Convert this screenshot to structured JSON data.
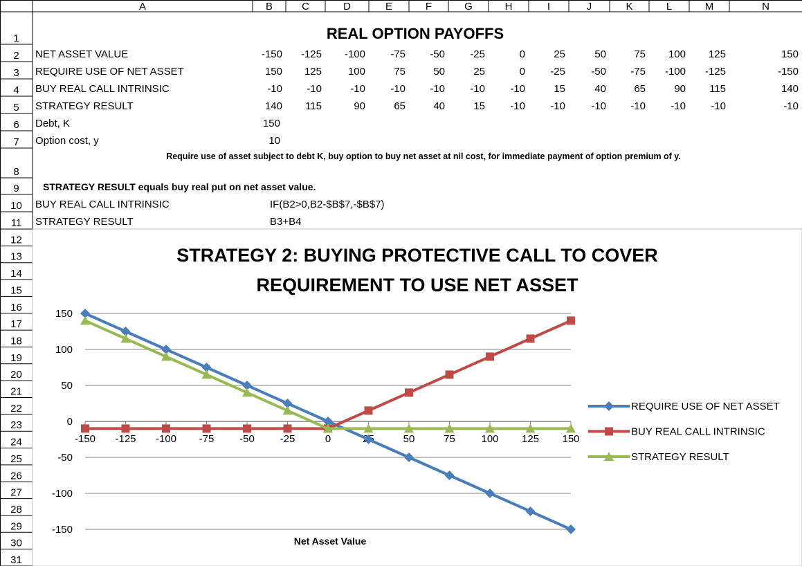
{
  "sheet": {
    "columns": [
      "A",
      "B",
      "C",
      "D",
      "E",
      "F",
      "G",
      "H",
      "I",
      "J",
      "K",
      "L",
      "M",
      "N"
    ],
    "rows": [
      1,
      2,
      3,
      4,
      5,
      6,
      7,
      8,
      9,
      10,
      11,
      12,
      13,
      14,
      15,
      16,
      17,
      18,
      19,
      20,
      21,
      22,
      23,
      24,
      25,
      26,
      27,
      28,
      29,
      30,
      31
    ],
    "title": "REAL OPTION PAYOFFS",
    "table": [
      {
        "label": "NET ASSET VALUE",
        "values": [
          -150,
          -125,
          -100,
          -75,
          -50,
          -25,
          0,
          25,
          50,
          75,
          100,
          125,
          150
        ]
      },
      {
        "label": "REQUIRE USE OF NET ASSET",
        "values": [
          150,
          125,
          100,
          75,
          50,
          25,
          0,
          -25,
          -50,
          -75,
          -100,
          -125,
          -150
        ]
      },
      {
        "label": "BUY REAL CALL INTRINSIC",
        "values": [
          -10,
          -10,
          -10,
          -10,
          -10,
          -10,
          -10,
          15,
          40,
          65,
          90,
          115,
          140
        ]
      },
      {
        "label": "STRATEGY RESULT",
        "values": [
          140,
          115,
          90,
          65,
          40,
          15,
          -10,
          -10,
          -10,
          -10,
          -10,
          -10,
          -10
        ]
      }
    ],
    "inputs": [
      {
        "label": "Debt, K",
        "value": 150
      },
      {
        "label": "Option cost, y",
        "value": 10
      }
    ],
    "note": "Require use of  asset subject to debt K, buy option to buy net asset at nil cost, for immediate payment of option premium of y.",
    "summary": "STRATEGY RESULT equals buy real put on net asset value.",
    "formulas": [
      {
        "label": "BUY REAL CALL INTRINSIC",
        "formula": "IF(B2>0,B2-$B$7,-$B$7)"
      },
      {
        "label": "STRATEGY RESULT",
        "formula": "B3+B4"
      }
    ]
  },
  "chart_data": {
    "type": "line",
    "title": [
      "STRATEGY 2: BUYING PROTECTIVE CALL TO COVER",
      "REQUIREMENT TO USE NET ASSET"
    ],
    "x_label": "Net Asset Value",
    "x": [
      -150,
      -125,
      -100,
      -75,
      -50,
      -25,
      0,
      25,
      50,
      75,
      100,
      125,
      150
    ],
    "xlim": [
      -150,
      150
    ],
    "xticks": [
      -150,
      -125,
      -100,
      -75,
      -50,
      -25,
      0,
      25,
      50,
      75,
      100,
      125,
      150
    ],
    "ylim": [
      -150,
      150
    ],
    "yticks": [
      -150,
      -100,
      -50,
      0,
      50,
      100,
      150
    ],
    "grid": true,
    "legend": "right",
    "series": [
      {
        "name": "REQUIRE USE OF NET ASSET",
        "color": "#4a7ebb",
        "marker": "diamond",
        "values": [
          150,
          125,
          100,
          75,
          50,
          25,
          0,
          -25,
          -50,
          -75,
          -100,
          -125,
          -150
        ]
      },
      {
        "name": "BUY REAL CALL INTRINSIC",
        "color": "#be4b48",
        "marker": "square",
        "values": [
          -10,
          -10,
          -10,
          -10,
          -10,
          -10,
          -10,
          15,
          40,
          65,
          90,
          115,
          140
        ]
      },
      {
        "name": "STRATEGY RESULT",
        "color": "#98b954",
        "marker": "triangle",
        "values": [
          140,
          115,
          90,
          65,
          40,
          15,
          -10,
          -10,
          -10,
          -10,
          -10,
          -10,
          -10
        ]
      }
    ]
  }
}
